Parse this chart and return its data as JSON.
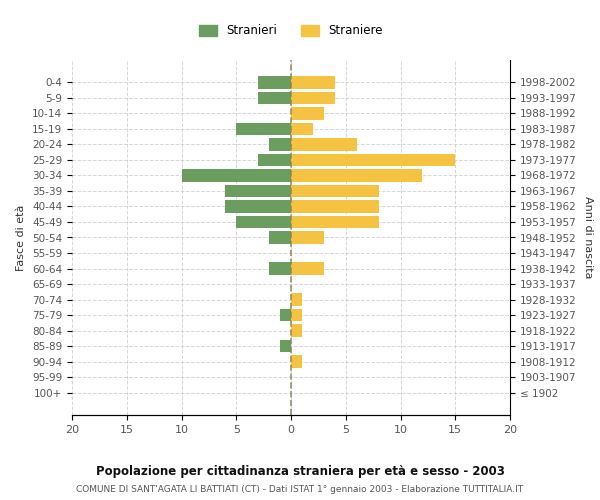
{
  "age_groups": [
    "100+",
    "95-99",
    "90-94",
    "85-89",
    "80-84",
    "75-79",
    "70-74",
    "65-69",
    "60-64",
    "55-59",
    "50-54",
    "45-49",
    "40-44",
    "35-39",
    "30-34",
    "25-29",
    "20-24",
    "15-19",
    "10-14",
    "5-9",
    "0-4"
  ],
  "birth_years": [
    "≤ 1902",
    "1903-1907",
    "1908-1912",
    "1913-1917",
    "1918-1922",
    "1923-1927",
    "1928-1932",
    "1933-1937",
    "1938-1942",
    "1943-1947",
    "1948-1952",
    "1953-1957",
    "1958-1962",
    "1963-1967",
    "1968-1972",
    "1973-1977",
    "1978-1982",
    "1983-1987",
    "1988-1992",
    "1993-1997",
    "1998-2002"
  ],
  "males": [
    0,
    0,
    0,
    1,
    0,
    1,
    0,
    0,
    2,
    0,
    2,
    5,
    6,
    6,
    10,
    3,
    2,
    5,
    0,
    3,
    3
  ],
  "females": [
    0,
    0,
    1,
    0,
    1,
    1,
    1,
    0,
    3,
    0,
    3,
    8,
    8,
    8,
    12,
    15,
    6,
    2,
    3,
    4,
    4
  ],
  "male_color": "#6b9e5e",
  "female_color": "#f5c242",
  "male_label": "Stranieri",
  "female_label": "Straniere",
  "title_main": "Popolazione per cittadinanza straniera per età e sesso - 2003",
  "title_sub": "COMUNE DI SANT'AGATA LI BATTIATI (CT) - Dati ISTAT 1° gennaio 2003 - Elaborazione TUTTITALIA.IT",
  "ylabel_left": "Fasce di età",
  "ylabel_right": "Anni di nascita",
  "xlim": 20,
  "background_color": "#ffffff",
  "grid_color": "#cccccc",
  "bar_height": 0.8
}
